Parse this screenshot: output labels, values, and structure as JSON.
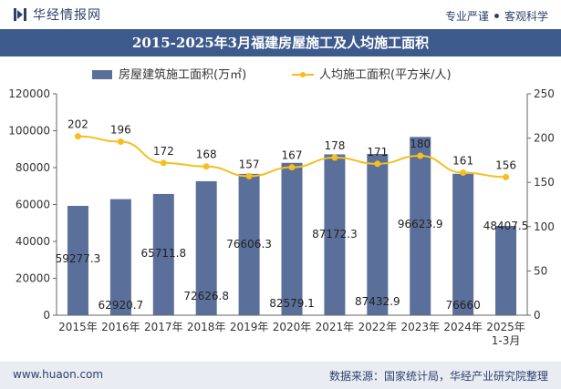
{
  "header": {
    "brand_name": "华经情报网",
    "tagline_left": "专业严谨",
    "tagline_right": "客观科学"
  },
  "footer": {
    "website": "www.huaon.com",
    "source": "数据来源：国家统计局，华经产业研究院整理"
  },
  "colors": {
    "bar": "#5a6f9a",
    "line": "#f5bf1f",
    "title_bg": "#3d5a8c"
  },
  "chart_data": {
    "type": "bar",
    "title": "2015-2025年3月福建房屋施工及人均施工面积",
    "categories": [
      "2015年",
      "2016年",
      "2017年",
      "2018年",
      "2019年",
      "2020年",
      "2021年",
      "2022年",
      "2023年",
      "2024年",
      "2025年\n1-3月"
    ],
    "series": [
      {
        "name": "房屋建筑施工面积(万㎡)",
        "type": "bar",
        "axis": "left",
        "values": [
          59277.3,
          62920.7,
          65711.8,
          72626.8,
          76606.3,
          82579.1,
          87172.3,
          87432.9,
          96623.9,
          76660,
          48407.5
        ],
        "labels": [
          "59277.3",
          "62920.7",
          "65711.8",
          "72626.8",
          "76606.3",
          "82579.1",
          "87172.3",
          "87432.9",
          "96623.9",
          "76660",
          "48407.5"
        ]
      },
      {
        "name": "人均施工面积(平方米/人)",
        "type": "line",
        "axis": "right",
        "values": [
          202,
          196,
          172,
          168,
          157,
          167,
          178,
          171,
          180,
          161,
          156
        ],
        "labels": [
          "202",
          "196",
          "172",
          "168",
          "157",
          "167",
          "178",
          "171",
          "180",
          "161",
          "156"
        ]
      }
    ],
    "y_left": {
      "min": 0,
      "max": 120000,
      "ticks": [
        "0",
        "20000",
        "40000",
        "60000",
        "80000",
        "100000",
        "120000"
      ]
    },
    "y_right": {
      "min": 0,
      "max": 250,
      "ticks": [
        "0",
        "50",
        "100",
        "150",
        "200",
        "250"
      ]
    },
    "legend_position": "top-center",
    "grid": false
  }
}
